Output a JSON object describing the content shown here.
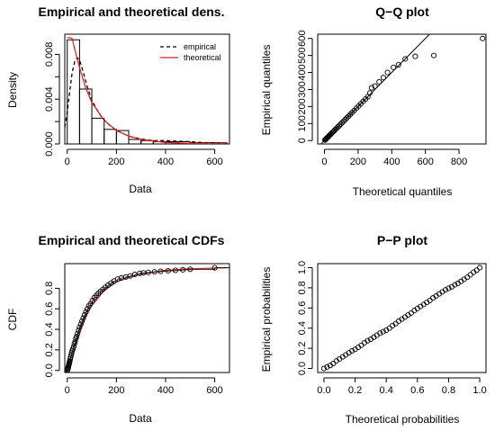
{
  "chart_data": [
    {
      "type": "bar",
      "title": "Empirical and theoretical dens.",
      "xlabel": "Data",
      "ylabel": "Density",
      "xlim": [
        -10,
        660
      ],
      "ylim": [
        0,
        0.0098
      ],
      "xticks": [
        "0",
        "200",
        "400",
        "600"
      ],
      "yticks": [
        "0.000",
        "0.004",
        "0.008"
      ],
      "ytick_values": [
        0,
        0.002,
        0.004,
        0.006,
        0.008
      ],
      "histogram": {
        "bins": [
          [
            0,
            50
          ],
          [
            50,
            100
          ],
          [
            100,
            150
          ],
          [
            150,
            200
          ],
          [
            200,
            250
          ],
          [
            250,
            300
          ],
          [
            300,
            350
          ],
          [
            350,
            400
          ],
          [
            400,
            450
          ],
          [
            450,
            500
          ],
          [
            500,
            550
          ],
          [
            550,
            600
          ],
          [
            600,
            650
          ]
        ],
        "values": [
          0.0093,
          0.0049,
          0.0023,
          0.0013,
          0.0012,
          0.0004,
          0.0003,
          0.0002,
          0.0002,
          0.0002,
          0.0001,
          0.0001,
          0.0001
        ]
      },
      "legend": {
        "position": "top-right",
        "entries": [
          "empirical",
          "theoretical"
        ]
      },
      "series": [
        {
          "name": "empirical",
          "style": "dashed",
          "color": "#000000",
          "x": [
            -10,
            0,
            10,
            20,
            30,
            40,
            50,
            60,
            80,
            100,
            130,
            160,
            200,
            250,
            300,
            350,
            400,
            450,
            500,
            550,
            600,
            650
          ],
          "y": [
            0.0015,
            0.0028,
            0.0047,
            0.0064,
            0.0073,
            0.0077,
            0.0075,
            0.0068,
            0.0052,
            0.0039,
            0.0027,
            0.0019,
            0.0012,
            0.0007,
            0.00045,
            0.0003,
            0.0003,
            0.00025,
            0.0002,
            0.00012,
            0.0001,
            5e-05
          ]
        },
        {
          "name": "theoretical",
          "style": "solid",
          "color": "#e41a1c",
          "x": [
            0,
            5,
            10,
            20,
            30,
            50,
            75,
            100,
            150,
            200,
            250,
            300,
            400,
            500,
            650
          ],
          "y": [
            0.0095,
            0.0095,
            0.0095,
            0.0094,
            0.0085,
            0.0068,
            0.005,
            0.0037,
            0.0021,
            0.0012,
            0.0007,
            0.0004,
            0.00013,
            5e-05,
            1e-05
          ]
        }
      ]
    },
    {
      "type": "scatter",
      "title": "Q−Q plot",
      "xlabel": "Theoretical quantiles",
      "ylabel": "Empirical quantiles",
      "xlim": [
        -40,
        960
      ],
      "ylim": [
        -20,
        625
      ],
      "xticks": [
        "0",
        "200",
        "400",
        "600",
        "800"
      ],
      "yticks": [
        "0",
        "100",
        "200",
        "300",
        "400",
        "500",
        "600"
      ],
      "reference_line": {
        "slope": 1,
        "intercept": 0
      },
      "series": [
        {
          "x": [
            3,
            6,
            9,
            12,
            16,
            20,
            25,
            30,
            35,
            40,
            46,
            52,
            58,
            65,
            72,
            80,
            88,
            96,
            105,
            114,
            123,
            133,
            143,
            154,
            165,
            177,
            190,
            203,
            216,
            230,
            244,
            258,
            270,
            280,
            300,
            325,
            350,
            375,
            410,
            440,
            480,
            540,
            650,
            940
          ],
          "y": [
            3,
            6,
            9,
            12,
            16,
            20,
            25,
            30,
            35,
            40,
            46,
            52,
            58,
            65,
            72,
            80,
            88,
            96,
            105,
            114,
            123,
            133,
            143,
            154,
            165,
            177,
            190,
            203,
            216,
            230,
            244,
            258,
            280,
            310,
            320,
            345,
            370,
            400,
            430,
            445,
            480,
            495,
            500,
            600
          ]
        }
      ]
    },
    {
      "type": "line",
      "title": "Empirical and theoretical CDFs",
      "xlabel": "Data",
      "ylabel": "CDF",
      "xlim": [
        -10,
        660
      ],
      "ylim": [
        -0.02,
        1.04
      ],
      "xticks": [
        "0",
        "200",
        "400",
        "600"
      ],
      "yticks": [
        "0.0",
        "0.2",
        "0.4",
        "0.6",
        "0.8"
      ],
      "series": [
        {
          "name": "theoretical",
          "color": "#e41a1c",
          "x": [
            0,
            10,
            25,
            50,
            75,
            100,
            150,
            200,
            250,
            300,
            400,
            500,
            650
          ],
          "y": [
            0,
            0.09,
            0.21,
            0.39,
            0.53,
            0.63,
            0.78,
            0.86,
            0.91,
            0.94,
            0.975,
            0.99,
            1.0
          ]
        },
        {
          "name": "empirical",
          "x": [
            1,
            2,
            3,
            4,
            5,
            6,
            7,
            8,
            9,
            10,
            12,
            14,
            16,
            18,
            20,
            23,
            26,
            29,
            32,
            35,
            38,
            42,
            46,
            50,
            55,
            60,
            65,
            70,
            76,
            82,
            88,
            95,
            102,
            110,
            118,
            126,
            135,
            145,
            155,
            166,
            178,
            190,
            205,
            220,
            238,
            256,
            275,
            295,
            310,
            330,
            355,
            380,
            410,
            440,
            470,
            500,
            600
          ],
          "y": [
            0.005,
            0.01,
            0.02,
            0.03,
            0.04,
            0.05,
            0.06,
            0.07,
            0.08,
            0.09,
            0.11,
            0.13,
            0.15,
            0.17,
            0.19,
            0.21,
            0.23,
            0.26,
            0.28,
            0.31,
            0.33,
            0.36,
            0.39,
            0.42,
            0.45,
            0.48,
            0.51,
            0.54,
            0.57,
            0.6,
            0.63,
            0.65,
            0.68,
            0.71,
            0.73,
            0.75,
            0.77,
            0.79,
            0.81,
            0.83,
            0.85,
            0.87,
            0.89,
            0.9,
            0.91,
            0.92,
            0.935,
            0.945,
            0.95,
            0.955,
            0.96,
            0.965,
            0.97,
            0.975,
            0.98,
            0.985,
            1.0
          ]
        }
      ]
    },
    {
      "type": "scatter",
      "title": "P−P plot",
      "xlabel": "Theoretical probabilities",
      "ylabel": "Empirical probabilities",
      "xlim": [
        -0.04,
        1.04
      ],
      "ylim": [
        -0.04,
        1.04
      ],
      "xticks": [
        "0.0",
        "0.2",
        "0.4",
        "0.6",
        "0.8",
        "1.0"
      ],
      "yticks": [
        "0.0",
        "0.2",
        "0.4",
        "0.6",
        "0.8",
        "1.0"
      ],
      "series": [
        {
          "x": [
            0.0,
            0.02,
            0.04,
            0.06,
            0.08,
            0.1,
            0.12,
            0.14,
            0.16,
            0.18,
            0.2,
            0.22,
            0.24,
            0.26,
            0.28,
            0.3,
            0.32,
            0.34,
            0.36,
            0.38,
            0.4,
            0.42,
            0.44,
            0.46,
            0.48,
            0.5,
            0.52,
            0.54,
            0.56,
            0.58,
            0.6,
            0.62,
            0.64,
            0.66,
            0.68,
            0.7,
            0.72,
            0.74,
            0.76,
            0.78,
            0.8,
            0.82,
            0.84,
            0.86,
            0.88,
            0.9,
            0.92,
            0.94,
            0.96,
            0.98,
            1.0
          ],
          "y": [
            0.0,
            0.015,
            0.03,
            0.05,
            0.075,
            0.095,
            0.115,
            0.135,
            0.155,
            0.175,
            0.19,
            0.21,
            0.23,
            0.255,
            0.275,
            0.29,
            0.31,
            0.33,
            0.35,
            0.365,
            0.38,
            0.4,
            0.425,
            0.445,
            0.47,
            0.49,
            0.51,
            0.53,
            0.55,
            0.575,
            0.595,
            0.615,
            0.635,
            0.655,
            0.675,
            0.7,
            0.72,
            0.74,
            0.76,
            0.78,
            0.795,
            0.81,
            0.83,
            0.845,
            0.865,
            0.885,
            0.905,
            0.93,
            0.955,
            0.975,
            1.0
          ]
        }
      ]
    }
  ]
}
